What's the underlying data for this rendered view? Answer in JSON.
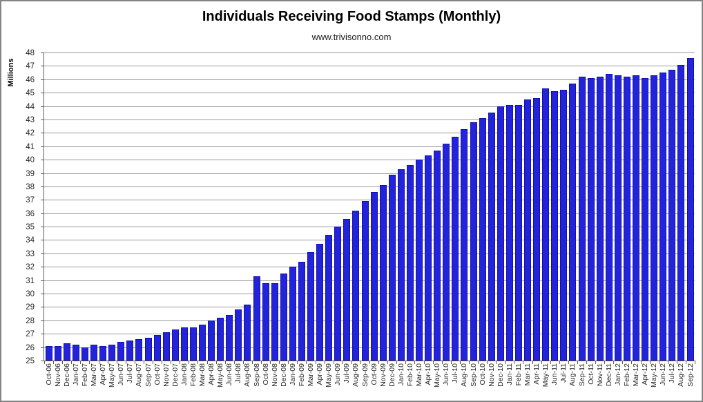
{
  "page": {
    "background": "#ffffff",
    "frame_border_color": "#848484"
  },
  "chart_data": {
    "type": "bar",
    "title": "Individuals Receiving Food Stamps (Monthly)",
    "subtitle": "www.trivisonno.com",
    "ylabel": "Millions",
    "xlabel": "",
    "ylim": [
      25,
      48
    ],
    "y_tick_step": 1,
    "grid": "horizontal",
    "legend_position": "none",
    "bar_color": "#2323DC",
    "bar_border_color": "#1212A6",
    "gridline_color": "#999999",
    "axis_color": "#595959",
    "text_color": "#262626",
    "categories": [
      "Oct-06",
      "Nov-06",
      "Dec-06",
      "Jan-07",
      "Feb-07",
      "Mar-07",
      "Apr-07",
      "May-07",
      "Jun-07",
      "Jul-07",
      "Aug-07",
      "Sep-07",
      "Oct-07",
      "Nov-07",
      "Dec-07",
      "Jan-08",
      "Feb-08",
      "Mar-08",
      "Apr-08",
      "May-08",
      "Jun-08",
      "Jul-08",
      "Aug-08",
      "Sep-08",
      "Oct-08",
      "Nov-08",
      "Dec-08",
      "Jan-09",
      "Feb-09",
      "Mar-09",
      "Apr-09",
      "May-09",
      "Jun-09",
      "Jul-09",
      "Aug-09",
      "Sep-09",
      "Oct-09",
      "Nov-09",
      "Dec-09",
      "Jan-10",
      "Feb-10",
      "Mar-10",
      "Apr-10",
      "May-10",
      "Jun-10",
      "Jul-10",
      "Aug-10",
      "Sep-10",
      "Oct-10",
      "Nov-10",
      "Dec-10",
      "Jan-11",
      "Feb-11",
      "Mar-11",
      "Apr-11",
      "May-11",
      "Jun-11",
      "Jul-11",
      "Aug-11",
      "Sep-11",
      "Oct-11",
      "Nov-11",
      "Dec-11",
      "Jan-12",
      "Feb-12",
      "Mar-12",
      "Apr-12",
      "May-12",
      "Jun-12",
      "Jul-12",
      "Aug-12",
      "Sep-12"
    ],
    "values": [
      26.1,
      26.1,
      26.3,
      26.2,
      26.0,
      26.2,
      26.1,
      26.2,
      26.4,
      26.5,
      26.6,
      26.7,
      26.9,
      27.1,
      27.3,
      27.5,
      27.5,
      27.7,
      28.0,
      28.2,
      28.4,
      28.8,
      29.2,
      31.3,
      30.8,
      30.8,
      31.5,
      32.0,
      32.4,
      33.1,
      33.7,
      34.4,
      35.0,
      35.6,
      36.2,
      36.9,
      37.6,
      38.1,
      38.9,
      39.3,
      39.6,
      40.0,
      40.3,
      40.7,
      41.2,
      41.7,
      42.3,
      42.8,
      43.1,
      43.5,
      44.0,
      44.1,
      44.1,
      44.5,
      44.6,
      45.3,
      45.1,
      45.2,
      45.7,
      46.2,
      46.1,
      46.2,
      46.4,
      46.3,
      46.2,
      46.3,
      46.1,
      46.3,
      46.5,
      46.7,
      47.1,
      47.6
    ]
  }
}
